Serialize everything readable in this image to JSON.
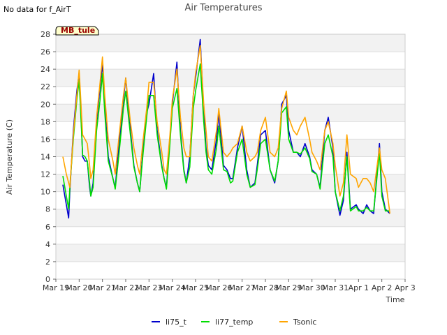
{
  "header": {
    "no_data_text": "No data for f_AirT"
  },
  "chart_data": {
    "type": "line",
    "title": "Air Temperatures",
    "xlabel": "Time",
    "ylabel": "Air Temperature (C)",
    "ylim": [
      0,
      28
    ],
    "yticks": [
      0,
      2,
      4,
      6,
      8,
      10,
      12,
      14,
      16,
      18,
      20,
      22,
      24,
      26,
      28
    ],
    "xlim": [
      0,
      15
    ],
    "xtick_labels": [
      "Mar 19",
      "Mar 20",
      "Mar 21",
      "Mar 22",
      "Mar 23",
      "Mar 24",
      "Mar 25",
      "Mar 26",
      "Mar 27",
      "Mar 28",
      "Mar 29",
      "Mar 30",
      "Mar 31",
      "Apr 1",
      "Apr 2",
      "Apr 3"
    ],
    "station_label": "MB_tule",
    "grid": true,
    "legend_position": "bottom-center",
    "series": [
      {
        "name": "li75_t",
        "color": "#0000cc",
        "x": [
          0.3,
          0.45,
          0.55,
          0.6,
          0.75,
          0.9,
          1.0,
          1.05,
          1.15,
          1.25,
          1.35,
          1.45,
          1.5,
          1.6,
          1.75,
          1.9,
          2.0,
          2.1,
          2.25,
          2.45,
          2.55,
          2.7,
          2.9,
          3.0,
          3.2,
          3.35,
          3.5,
          3.6,
          3.75,
          3.9,
          4.0,
          4.2,
          4.35,
          4.55,
          4.65,
          4.75,
          4.9,
          5.0,
          5.2,
          5.35,
          5.5,
          5.6,
          5.75,
          5.9,
          6.0,
          6.2,
          6.35,
          6.45,
          6.55,
          6.7,
          6.9,
          7.0,
          7.2,
          7.35,
          7.5,
          7.6,
          7.8,
          8.0,
          8.2,
          8.35,
          8.55,
          8.65,
          8.8,
          9.0,
          9.2,
          9.4,
          9.55,
          9.7,
          9.9,
          10.0,
          10.2,
          10.35,
          10.5,
          10.7,
          10.9,
          11.0,
          11.2,
          11.35,
          11.55,
          11.7,
          11.9,
          12.0,
          12.2,
          12.35,
          12.5,
          12.65,
          12.9,
          13.0,
          13.2,
          13.35,
          13.5,
          13.65,
          13.9,
          14.0,
          14.15,
          14.35
        ],
        "y": [
          10.8,
          8.5,
          7.0,
          10.0,
          17.0,
          21.5,
          23.5,
          21.0,
          14.0,
          13.5,
          13.5,
          10.5,
          9.5,
          11.0,
          18.0,
          22.0,
          24.6,
          20.0,
          14.0,
          11.5,
          10.5,
          15.0,
          20.5,
          23.0,
          17.0,
          13.0,
          11.0,
          10.0,
          15.0,
          19.0,
          20.0,
          23.5,
          17.0,
          13.0,
          11.5,
          10.5,
          16.0,
          20.0,
          24.8,
          17.0,
          12.5,
          11.0,
          14.0,
          21.0,
          23.0,
          27.4,
          19.0,
          15.0,
          13.0,
          12.5,
          16.0,
          19.0,
          13.0,
          12.5,
          11.5,
          11.5,
          15.0,
          17.5,
          12.5,
          10.5,
          11.0,
          13.0,
          16.5,
          17.0,
          12.5,
          11.0,
          13.5,
          20.0,
          21.0,
          17.0,
          14.5,
          14.5,
          14.0,
          15.5,
          14.0,
          12.5,
          12.0,
          10.5,
          17.0,
          18.5,
          15.0,
          10.0,
          7.3,
          9.0,
          14.5,
          8.0,
          8.5,
          8.0,
          7.5,
          8.5,
          7.8,
          7.5,
          15.5,
          10.0,
          8.0,
          7.5
        ]
      },
      {
        "name": "li77_temp",
        "color": "#00dd00",
        "x": [
          0.3,
          0.45,
          0.55,
          0.6,
          0.75,
          0.9,
          1.0,
          1.05,
          1.15,
          1.25,
          1.35,
          1.45,
          1.5,
          1.6,
          1.75,
          1.9,
          2.0,
          2.1,
          2.25,
          2.45,
          2.55,
          2.7,
          2.9,
          3.0,
          3.2,
          3.35,
          3.5,
          3.6,
          3.75,
          3.9,
          4.0,
          4.2,
          4.35,
          4.55,
          4.65,
          4.75,
          4.9,
          5.0,
          5.2,
          5.35,
          5.5,
          5.6,
          5.75,
          5.9,
          6.0,
          6.2,
          6.35,
          6.45,
          6.55,
          6.7,
          6.9,
          7.0,
          7.2,
          7.35,
          7.5,
          7.6,
          7.8,
          8.0,
          8.2,
          8.35,
          8.55,
          8.65,
          8.8,
          9.0,
          9.2,
          9.4,
          9.55,
          9.7,
          9.9,
          10.0,
          10.2,
          10.35,
          10.5,
          10.7,
          10.9,
          11.0,
          11.2,
          11.35,
          11.55,
          11.7,
          11.9,
          12.0,
          12.2,
          12.35,
          12.5,
          12.65,
          12.9,
          13.0,
          13.2,
          13.35,
          13.5,
          13.65,
          13.9,
          14.0,
          14.15,
          14.35
        ],
        "y": [
          11.8,
          9.5,
          8.0,
          10.5,
          16.0,
          20.5,
          22.7,
          20.0,
          14.2,
          14.0,
          13.5,
          11.0,
          9.5,
          10.5,
          17.0,
          20.5,
          23.5,
          19.0,
          13.5,
          11.5,
          10.3,
          14.0,
          19.5,
          21.5,
          16.5,
          12.8,
          11.0,
          10.0,
          14.5,
          18.5,
          21.0,
          21.0,
          16.5,
          12.8,
          11.5,
          10.3,
          15.5,
          19.5,
          21.8,
          16.5,
          12.3,
          11.0,
          12.8,
          19.5,
          21.5,
          24.6,
          18.0,
          14.5,
          12.5,
          12.0,
          15.0,
          17.5,
          12.5,
          12.3,
          11.0,
          11.2,
          14.5,
          16.0,
          12.0,
          10.5,
          10.8,
          12.5,
          15.5,
          16.0,
          12.5,
          11.2,
          13.5,
          19.0,
          19.7,
          16.0,
          14.5,
          14.5,
          14.3,
          15.0,
          13.8,
          12.3,
          12.0,
          10.3,
          15.5,
          16.5,
          14.0,
          10.0,
          7.8,
          9.5,
          14.0,
          7.8,
          8.3,
          7.8,
          7.8,
          8.2,
          7.8,
          7.8,
          14.5,
          9.5,
          7.8,
          7.8
        ]
      },
      {
        "name": "Tsonic",
        "color": "#ffa500",
        "x": [
          0.3,
          0.45,
          0.55,
          0.6,
          0.75,
          0.9,
          1.0,
          1.05,
          1.15,
          1.25,
          1.35,
          1.45,
          1.5,
          1.6,
          1.75,
          1.9,
          2.0,
          2.1,
          2.25,
          2.45,
          2.55,
          2.7,
          2.9,
          3.0,
          3.2,
          3.35,
          3.5,
          3.6,
          3.75,
          3.9,
          4.0,
          4.2,
          4.35,
          4.55,
          4.65,
          4.75,
          4.9,
          5.0,
          5.2,
          5.35,
          5.5,
          5.6,
          5.75,
          5.9,
          6.0,
          6.2,
          6.35,
          6.45,
          6.55,
          6.7,
          6.9,
          7.0,
          7.2,
          7.35,
          7.5,
          7.6,
          7.8,
          8.0,
          8.2,
          8.35,
          8.55,
          8.65,
          8.8,
          9.0,
          9.2,
          9.4,
          9.55,
          9.7,
          9.9,
          10.0,
          10.2,
          10.35,
          10.5,
          10.7,
          10.9,
          11.0,
          11.2,
          11.35,
          11.55,
          11.7,
          11.9,
          12.0,
          12.2,
          12.35,
          12.5,
          12.65,
          12.9,
          13.0,
          13.2,
          13.35,
          13.5,
          13.65,
          13.9,
          14.0,
          14.15,
          14.35
        ],
        "y": [
          14.0,
          12.0,
          11.0,
          10.5,
          16.5,
          21.0,
          23.9,
          21.5,
          16.5,
          16.0,
          15.5,
          13.0,
          11.5,
          12.5,
          18.5,
          22.5,
          25.4,
          21.0,
          16.0,
          13.5,
          12.0,
          16.0,
          21.0,
          23.0,
          18.0,
          15.0,
          13.0,
          12.0,
          16.0,
          19.5,
          22.5,
          22.5,
          18.0,
          14.5,
          12.5,
          12.0,
          16.5,
          20.5,
          24.0,
          18.5,
          15.0,
          14.0,
          14.0,
          21.0,
          23.5,
          26.7,
          20.0,
          17.0,
          14.0,
          13.5,
          17.0,
          19.5,
          14.5,
          14.0,
          14.5,
          15.0,
          15.5,
          17.5,
          14.5,
          13.5,
          14.0,
          14.5,
          17.0,
          18.5,
          14.5,
          14.0,
          15.0,
          19.5,
          21.5,
          18.5,
          17.0,
          16.5,
          17.5,
          18.5,
          16.0,
          14.5,
          13.5,
          12.5,
          17.0,
          18.0,
          15.5,
          13.0,
          9.5,
          11.0,
          16.5,
          12.0,
          11.5,
          10.5,
          11.5,
          11.5,
          11.0,
          10.0,
          15.0,
          12.5,
          11.5,
          7.5
        ]
      }
    ]
  }
}
